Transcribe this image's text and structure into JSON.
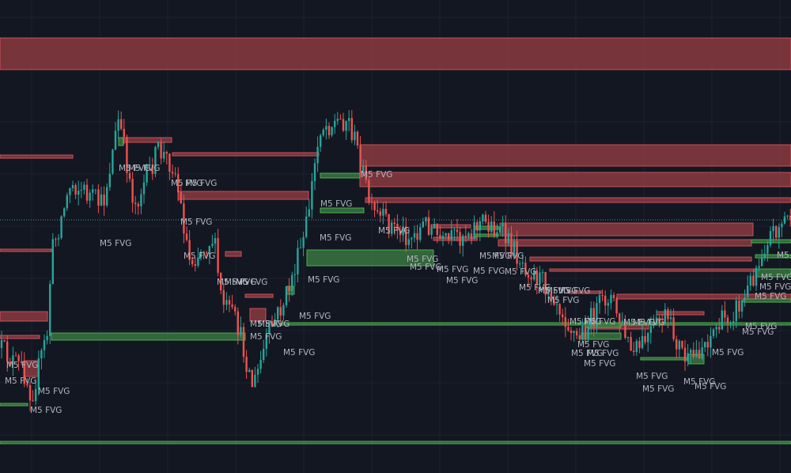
{
  "labels": [
    "M5 FVG",
    "M5 FVG",
    "M5 FVG",
    "M5 FVG",
    "M5 FVG",
    "M5 FVG",
    "M5 FVG",
    "M5 FVG",
    "M5 FVG",
    "M5 FVG",
    "M5 FVG",
    "M5 FVG",
    "M5 FVG",
    "M5 FVG",
    "M5 FVG",
    "M5 FVG",
    "M5 FVG",
    "M5 FVG",
    "M5 FVG",
    "M5 FVG",
    "M5 FVG",
    "M5 FVG",
    "M5 FVG",
    "M5 FVG",
    "M5 FVG",
    "M5 FVG",
    "M5 FVG",
    "M5 FVG",
    "M5 FVG",
    "M5 FVG",
    "M5 FVG",
    "M5 FVG",
    "M5 FVG",
    "M5 FVG",
    "M5 FVG",
    "M5 FVG",
    "M5 FVG",
    "M5 FVG",
    "M5 FVG",
    "M5 FVG",
    "M5 FVG",
    "M5 FVG",
    "M5 FVG",
    "M5 FVG",
    "M5 FVG",
    "M5 FVG",
    "M5 FVG",
    "M5 FVG",
    "M5 FVG",
    "M5 FVG",
    "M5 FVG",
    "M5 FVG",
    "M5 FVG",
    "M5 FVG",
    "M5 FVG",
    "M5 FVG"
  ]
}
